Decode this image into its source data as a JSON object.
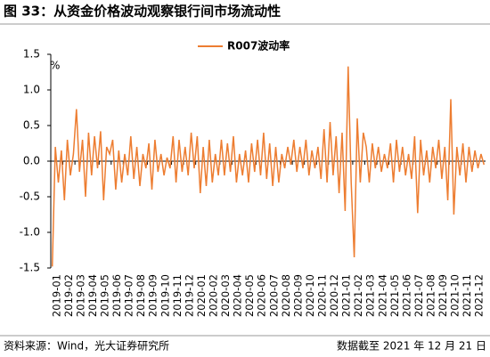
{
  "chart_data": {
    "type": "line",
    "title": "图 33：从资金价格波动观察银行间市场流动性",
    "y_unit": "%",
    "source": "资料来源：Wind，光大证券研究所",
    "note": "数据截至 2021 年 12 月 21 日",
    "xticks": [
      "2019-01",
      "2019-02",
      "2019-03",
      "2019-04",
      "2019-05",
      "2019-06",
      "2019-07",
      "2019-08",
      "2019-09",
      "2019-10",
      "2019-11",
      "2019-12",
      "2020-01",
      "2020-02",
      "2020-03",
      "2020-04",
      "2020-05",
      "2020-06",
      "2020-07",
      "2020-08",
      "2020-09",
      "2020-10",
      "2020-11",
      "2020-12",
      "2021-01",
      "2021-02",
      "2021-03",
      "2021-04",
      "2021-05",
      "2021-06",
      "2021-07",
      "2021-08",
      "2021-09",
      "2021-10",
      "2021-11",
      "2021-12"
    ],
    "x": [
      "2019-01",
      "2019-01",
      "2019-01",
      "2019-01",
      "2019-02",
      "2019-02",
      "2019-02",
      "2019-02",
      "2019-03",
      "2019-03",
      "2019-03",
      "2019-03",
      "2019-04",
      "2019-04",
      "2019-04",
      "2019-04",
      "2019-05",
      "2019-05",
      "2019-05",
      "2019-05",
      "2019-06",
      "2019-06",
      "2019-06",
      "2019-06",
      "2019-07",
      "2019-07",
      "2019-07",
      "2019-07",
      "2019-08",
      "2019-08",
      "2019-08",
      "2019-08",
      "2019-09",
      "2019-09",
      "2019-09",
      "2019-09",
      "2019-10",
      "2019-10",
      "2019-10",
      "2019-10",
      "2019-11",
      "2019-11",
      "2019-11",
      "2019-11",
      "2019-12",
      "2019-12",
      "2019-12",
      "2019-12",
      "2020-01",
      "2020-01",
      "2020-01",
      "2020-01",
      "2020-02",
      "2020-02",
      "2020-02",
      "2020-02",
      "2020-03",
      "2020-03",
      "2020-03",
      "2020-03",
      "2020-04",
      "2020-04",
      "2020-04",
      "2020-04",
      "2020-05",
      "2020-05",
      "2020-05",
      "2020-05",
      "2020-06",
      "2020-06",
      "2020-06",
      "2020-06",
      "2020-07",
      "2020-07",
      "2020-07",
      "2020-07",
      "2020-08",
      "2020-08",
      "2020-08",
      "2020-08",
      "2020-09",
      "2020-09",
      "2020-09",
      "2020-09",
      "2020-10",
      "2020-10",
      "2020-10",
      "2020-10",
      "2020-11",
      "2020-11",
      "2020-11",
      "2020-11",
      "2020-12",
      "2020-12",
      "2020-12",
      "2020-12",
      "2021-01",
      "2021-01",
      "2021-01",
      "2021-01",
      "2021-02",
      "2021-02",
      "2021-02",
      "2021-02",
      "2021-03",
      "2021-03",
      "2021-03",
      "2021-03",
      "2021-04",
      "2021-04",
      "2021-04",
      "2021-04",
      "2021-05",
      "2021-05",
      "2021-05",
      "2021-05",
      "2021-06",
      "2021-06",
      "2021-06",
      "2021-06",
      "2021-07",
      "2021-07",
      "2021-07",
      "2021-07",
      "2021-08",
      "2021-08",
      "2021-08",
      "2021-08",
      "2021-09",
      "2021-09",
      "2021-09",
      "2021-09",
      "2021-10",
      "2021-10",
      "2021-10",
      "2021-10",
      "2021-11",
      "2021-11",
      "2021-11",
      "2021-11",
      "2021-12",
      "2021-12",
      "2021-12",
      "2021-12"
    ],
    "series": [
      {
        "name": "R007波动率",
        "color": "#ed7d31",
        "values": [
          -1.48,
          0.2,
          -0.3,
          0.15,
          -0.55,
          0.3,
          -0.2,
          0.1,
          0.73,
          -0.15,
          0.3,
          -0.5,
          0.4,
          -0.2,
          0.35,
          -0.1,
          0.42,
          -0.55,
          0.2,
          0.1,
          0.3,
          -0.4,
          0.15,
          -0.3,
          0.1,
          -0.2,
          0.35,
          -0.25,
          0.2,
          -0.35,
          0.1,
          -0.1,
          0.25,
          -0.4,
          0.3,
          -0.15,
          0.1,
          -0.2,
          0.05,
          -0.1,
          0.35,
          -0.3,
          0.3,
          -0.15,
          0.2,
          -0.2,
          0.4,
          -0.1,
          0.35,
          -0.45,
          0.2,
          -0.35,
          0.3,
          -0.3,
          0.1,
          -0.2,
          0.3,
          -0.2,
          0.25,
          -0.15,
          0.35,
          -0.3,
          0.1,
          -0.2,
          0.15,
          -0.3,
          0.25,
          -0.15,
          0.3,
          -0.2,
          0.4,
          -0.25,
          0.25,
          -0.35,
          0.2,
          -0.3,
          0.1,
          -0.1,
          0.2,
          -0.05,
          0.3,
          -0.15,
          0.2,
          -0.1,
          0.3,
          -0.2,
          0.15,
          -0.1,
          0.2,
          -0.25,
          0.45,
          -0.3,
          0.55,
          -0.2,
          0.35,
          -0.45,
          0.4,
          -0.7,
          1.33,
          -0.3,
          -1.35,
          0.6,
          -0.3,
          0.4,
          0.2,
          -0.3,
          0.25,
          -0.1,
          0.2,
          -0.15,
          0.1,
          -0.1,
          0.25,
          -0.3,
          0.3,
          -0.15,
          0.2,
          -0.2,
          0.1,
          -0.25,
          0.35,
          -0.73,
          0.3,
          -0.2,
          0.15,
          -0.3,
          0.2,
          -0.1,
          0.3,
          -0.25,
          0.2,
          -0.55,
          0.87,
          -0.75,
          0.2,
          -0.2,
          0.25,
          -0.3,
          0.2,
          -0.15,
          0.15,
          -0.1,
          0.1,
          -0.05
        ]
      }
    ],
    "ylim": [
      -1.5,
      1.5
    ],
    "yticks": [
      {
        "value": -1.5,
        "label": "-1.5"
      },
      {
        "value": -1,
        "label": "-1.0"
      },
      {
        "value": -0.5,
        "label": "-0.5"
      },
      {
        "value": 0,
        "label": "0.0"
      },
      {
        "value": 0.5,
        "label": "0.5"
      },
      {
        "value": 1,
        "label": "1.0"
      },
      {
        "value": 1.5,
        "label": "1.5"
      }
    ],
    "legend": "top"
  }
}
